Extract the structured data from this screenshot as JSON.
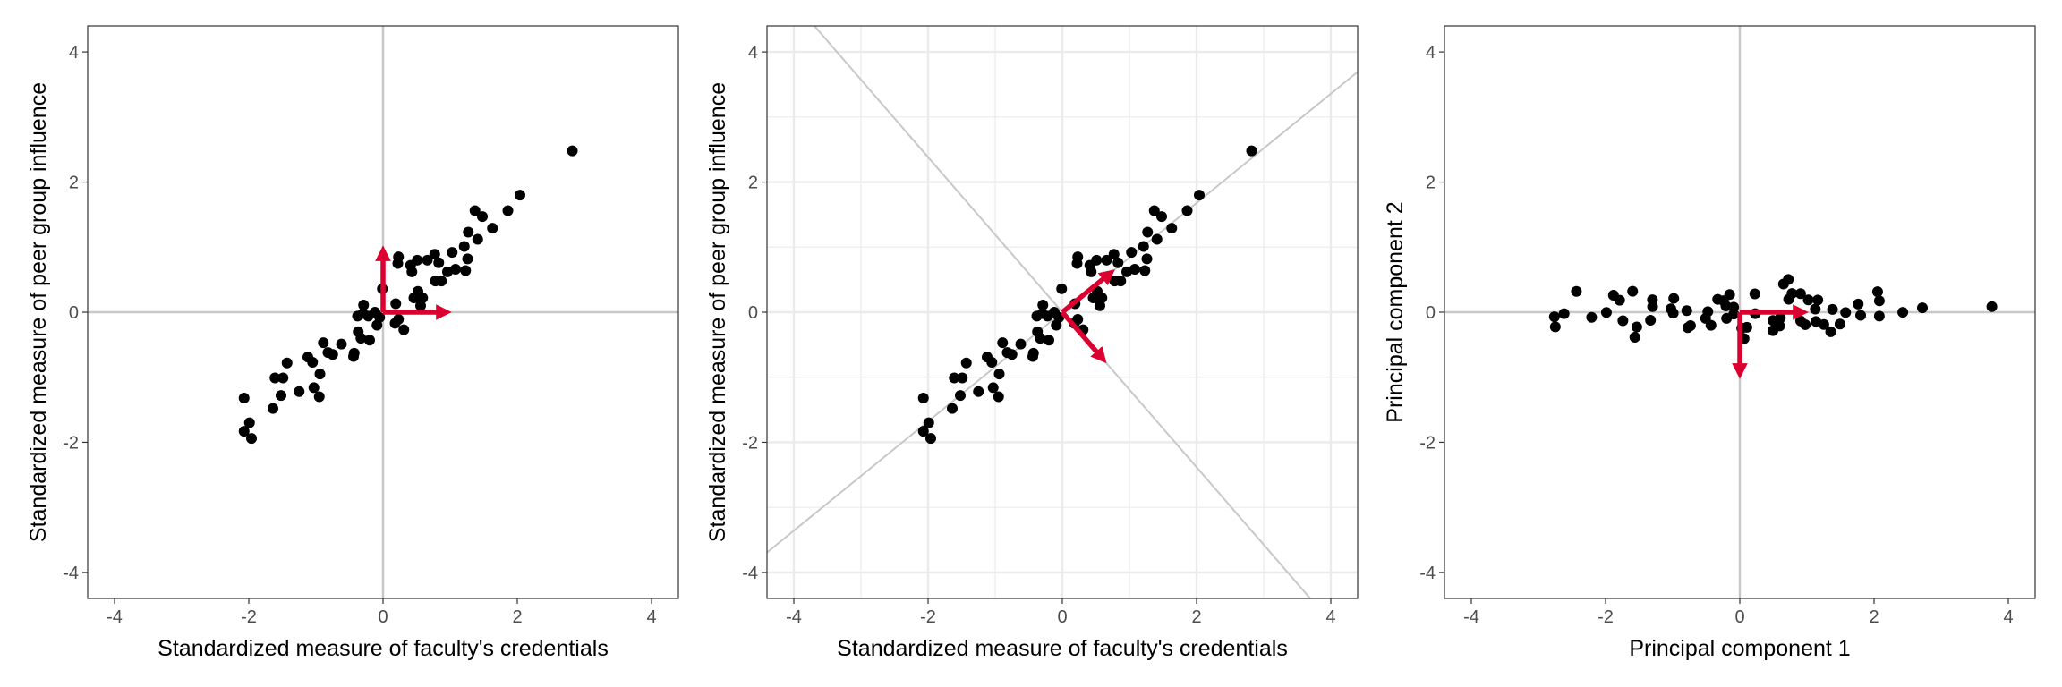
{
  "colors": {
    "points": "#000000",
    "arrows": "#dc0030",
    "reference_lines": "#c8c8c8",
    "grid": "#ebebeb",
    "panel_border": "#333333"
  },
  "chart_data": [
    {
      "type": "scatter",
      "title": "",
      "xlabel": "Standardized measure of faculty's credentials",
      "ylabel": "Standardized measure of peer group influence",
      "xlim": [
        -4.4,
        4.4
      ],
      "ylim": [
        -4.4,
        4.4
      ],
      "xticks": [
        "-4",
        "-2",
        "0",
        "2",
        "4"
      ],
      "yticks": [
        "-4",
        "-2",
        "0",
        "2",
        "4"
      ],
      "grid": false,
      "reference_lines": "x=0, y=0",
      "arrows": [
        [
          1,
          0
        ],
        [
          0,
          1
        ]
      ],
      "points": [
        [
          2.82,
          2.48
        ],
        [
          2.04,
          1.8
        ],
        [
          1.86,
          1.56
        ],
        [
          1.37,
          1.56
        ],
        [
          1.48,
          1.47
        ],
        [
          1.63,
          1.29
        ],
        [
          1.27,
          1.23
        ],
        [
          1.41,
          1.12
        ],
        [
          1.21,
          1.01
        ],
        [
          1.03,
          0.92
        ],
        [
          1.26,
          0.82
        ],
        [
          1.23,
          0.64
        ],
        [
          1.08,
          0.66
        ],
        [
          0.96,
          0.62
        ],
        [
          0.77,
          0.89
        ],
        [
          0.83,
          0.76
        ],
        [
          0.66,
          0.8
        ],
        [
          0.51,
          0.8
        ],
        [
          0.41,
          0.72
        ],
        [
          0.43,
          0.62
        ],
        [
          0.23,
          0.85
        ],
        [
          0.22,
          0.75
        ],
        [
          0.78,
          0.48
        ],
        [
          0.87,
          0.48
        ],
        [
          0.52,
          0.32
        ],
        [
          0.46,
          0.22
        ],
        [
          0.59,
          0.22
        ],
        [
          0.56,
          0.1
        ],
        [
          0.19,
          0.13
        ],
        [
          -0.01,
          0.36
        ],
        [
          -0.29,
          0.11
        ],
        [
          -0.38,
          -0.06
        ],
        [
          -0.22,
          -0.06
        ],
        [
          -0.09,
          -0.2
        ],
        [
          0.18,
          -0.17
        ],
        [
          0.23,
          -0.11
        ],
        [
          0.31,
          -0.27
        ],
        [
          -0.37,
          -0.3
        ],
        [
          -0.33,
          -0.4
        ],
        [
          -0.2,
          -0.43
        ],
        [
          -0.62,
          -0.49
        ],
        [
          -0.89,
          -0.47
        ],
        [
          -0.82,
          -0.62
        ],
        [
          -0.75,
          -0.65
        ],
        [
          -0.43,
          -0.63
        ],
        [
          -0.44,
          -0.68
        ],
        [
          -1.12,
          -0.69
        ],
        [
          -1.05,
          -0.77
        ],
        [
          -1.43,
          -0.78
        ],
        [
          -0.94,
          -0.95
        ],
        [
          -1.61,
          -1.01
        ],
        [
          -1.49,
          -1.01
        ],
        [
          -1.25,
          -1.22
        ],
        [
          -1.03,
          -1.16
        ],
        [
          -0.95,
          -1.3
        ],
        [
          -1.52,
          -1.28
        ],
        [
          -1.64,
          -1.48
        ],
        [
          -2.07,
          -1.32
        ],
        [
          -1.99,
          -1.7
        ],
        [
          -2.07,
          -1.83
        ],
        [
          -1.96,
          -1.94
        ],
        [
          -0.3,
          -0.02
        ],
        [
          -0.12,
          0.0
        ],
        [
          -0.05,
          -0.08
        ]
      ]
    },
    {
      "type": "scatter",
      "title": "",
      "xlabel": "Standardized measure of faculty's credentials",
      "ylabel": "Standardized measure of peer group influence",
      "xlim": [
        -4.4,
        4.4
      ],
      "ylim": [
        -4.4,
        4.4
      ],
      "xticks": [
        "-4",
        "-2",
        "0",
        "2",
        "4"
      ],
      "yticks": [
        "-4",
        "-2",
        "0",
        "2",
        "4"
      ],
      "grid": true,
      "reference_lines": "principal axes through origin",
      "eigenvectors": [
        [
          0.766,
          0.643
        ],
        [
          0.643,
          -0.766
        ]
      ],
      "points": "same as panel 1"
    },
    {
      "type": "scatter",
      "title": "",
      "xlabel": "Principal component 1",
      "ylabel": "Principal component 2",
      "xlim": [
        -4.4,
        4.4
      ],
      "ylim": [
        -4.4,
        4.4
      ],
      "xticks": [
        "-4",
        "-2",
        "0",
        "2",
        "4"
      ],
      "yticks": [
        "-4",
        "-2",
        "0",
        "2",
        "4"
      ],
      "grid": false,
      "reference_lines": "x=0, y=0",
      "arrows": [
        [
          1,
          0
        ],
        [
          0,
          -1
        ]
      ],
      "rotation": [
        [
          0.766,
          0.643
        ],
        [
          -0.643,
          0.766
        ]
      ],
      "points": "panel 1 points rotated onto principal components"
    }
  ]
}
